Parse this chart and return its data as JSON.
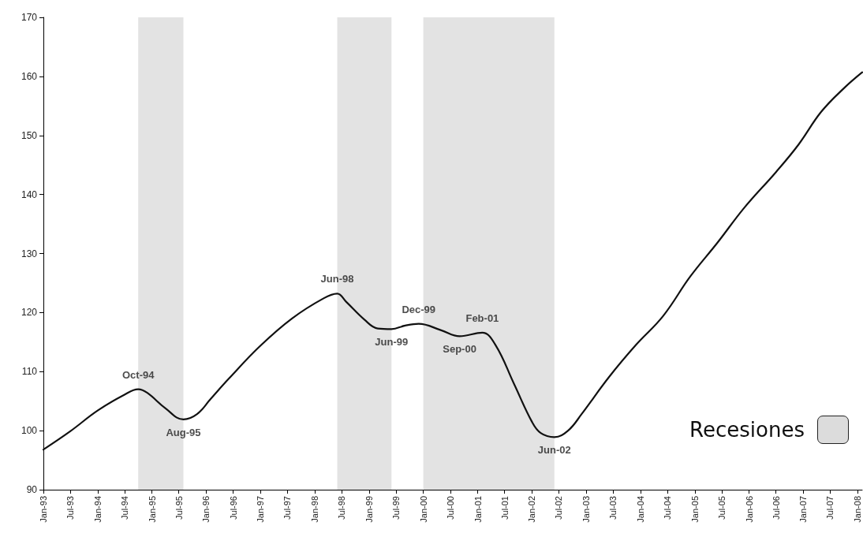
{
  "chart_data": {
    "type": "line",
    "x": [
      "1993-01",
      "1993-07",
      "1994-01",
      "1994-07",
      "1994-10",
      "1994-12",
      "1995-04",
      "1995-08",
      "1995-11",
      "1996-02",
      "1996-06",
      "1997-01",
      "1997-08",
      "1998-03",
      "1998-06",
      "1998-08",
      "1998-12",
      "1999-03",
      "1999-06",
      "1999-09",
      "1999-12",
      "2000-05",
      "2000-09",
      "2001-02",
      "2001-05",
      "2001-09",
      "2002-01",
      "2002-03",
      "2002-06",
      "2002-09",
      "2002-12",
      "2003-06",
      "2003-12",
      "2004-06",
      "2004-12",
      "2005-06",
      "2005-12",
      "2006-07",
      "2006-12",
      "2007-05",
      "2007-10",
      "2008-02"
    ],
    "series": [
      {
        "color": "#111111",
        "values": [
          96.8,
          99.9,
          103.4,
          106.1,
          107.0,
          106.4,
          103.8,
          101.9,
          102.8,
          105.4,
          108.8,
          114.4,
          119.0,
          122.4,
          123.2,
          121.8,
          118.8,
          117.3,
          117.2,
          117.8,
          118.1,
          117.0,
          116.0,
          116.6,
          114.5,
          108.0,
          101.5,
          99.6,
          98.9,
          100.0,
          102.8,
          109.0,
          114.5,
          119.4,
          126.1,
          131.8,
          137.8,
          143.8,
          148.5,
          154.0,
          158.0,
          160.7
        ]
      }
    ],
    "xlim": [
      "1993-01",
      "2008-02"
    ],
    "xticks": [
      {
        "value": "1993-01",
        "label": "Jan-93"
      },
      {
        "value": "1993-07",
        "label": "Jul-93"
      },
      {
        "value": "1994-01",
        "label": "Jan-94"
      },
      {
        "value": "1994-07",
        "label": "Jul-94"
      },
      {
        "value": "1995-01",
        "label": "Jan-95"
      },
      {
        "value": "1995-07",
        "label": "Jul-95"
      },
      {
        "value": "1996-01",
        "label": "Jan-96"
      },
      {
        "value": "1996-07",
        "label": "Jul-96"
      },
      {
        "value": "1997-01",
        "label": "Jan-97"
      },
      {
        "value": "1997-07",
        "label": "Jul-97"
      },
      {
        "value": "1998-01",
        "label": "Jan-98"
      },
      {
        "value": "1998-07",
        "label": "Jul-98"
      },
      {
        "value": "1999-01",
        "label": "Jan-99"
      },
      {
        "value": "1999-07",
        "label": "Jul-99"
      },
      {
        "value": "2000-01",
        "label": "Jan-00"
      },
      {
        "value": "2000-07",
        "label": "Jul-00"
      },
      {
        "value": "2001-01",
        "label": "Jan-01"
      },
      {
        "value": "2001-07",
        "label": "Jul-01"
      },
      {
        "value": "2002-01",
        "label": "Jan-02"
      },
      {
        "value": "2002-07",
        "label": "Jul-02"
      },
      {
        "value": "2003-01",
        "label": "Jan-03"
      },
      {
        "value": "2003-07",
        "label": "Jul-03"
      },
      {
        "value": "2004-01",
        "label": "Jan-04"
      },
      {
        "value": "2004-07",
        "label": "Jul-04"
      },
      {
        "value": "2005-01",
        "label": "Jan-05"
      },
      {
        "value": "2005-07",
        "label": "Jul-05"
      },
      {
        "value": "2006-01",
        "label": "Jan-06"
      },
      {
        "value": "2006-07",
        "label": "Jul-06"
      },
      {
        "value": "2007-01",
        "label": "Jan-07"
      },
      {
        "value": "2007-07",
        "label": "Jul-07"
      },
      {
        "value": "2008-01",
        "label": "Jan-08"
      }
    ],
    "ylim": [
      90,
      170
    ],
    "yticks": [
      90,
      100,
      110,
      120,
      130,
      140,
      150,
      160,
      170
    ],
    "bands": [
      {
        "axis": "x",
        "from": "1994-10",
        "to": "1995-08",
        "color": "#dcdcdc"
      },
      {
        "axis": "x",
        "from": "1998-06",
        "to": "1999-06",
        "color": "#dcdcdc"
      },
      {
        "axis": "x",
        "from": "2000-01",
        "to": "2002-06",
        "color": "#dcdcdc"
      }
    ],
    "annotations": [
      "Recesiones",
      {
        "text": "Oct-94",
        "x": "1994-10",
        "y": 107.0
      },
      {
        "text": "Aug-95",
        "x": "1995-08",
        "y": 101.9
      },
      {
        "text": "Jun-98",
        "x": "1998-06",
        "y": 123.2
      },
      {
        "text": "Jun-99",
        "x": "1999-06",
        "y": 117.2
      },
      {
        "text": "Dec-99",
        "x": "1999-12",
        "y": 118.1
      },
      {
        "text": "Sep-00",
        "x": "2000-09",
        "y": 116.0
      },
      {
        "text": "Feb-01",
        "x": "2001-02",
        "y": 116.6
      },
      {
        "text": "Jun-02",
        "x": "2002-06",
        "y": 98.9
      }
    ],
    "grid": false,
    "marker": "none",
    "line_style": "solid"
  }
}
